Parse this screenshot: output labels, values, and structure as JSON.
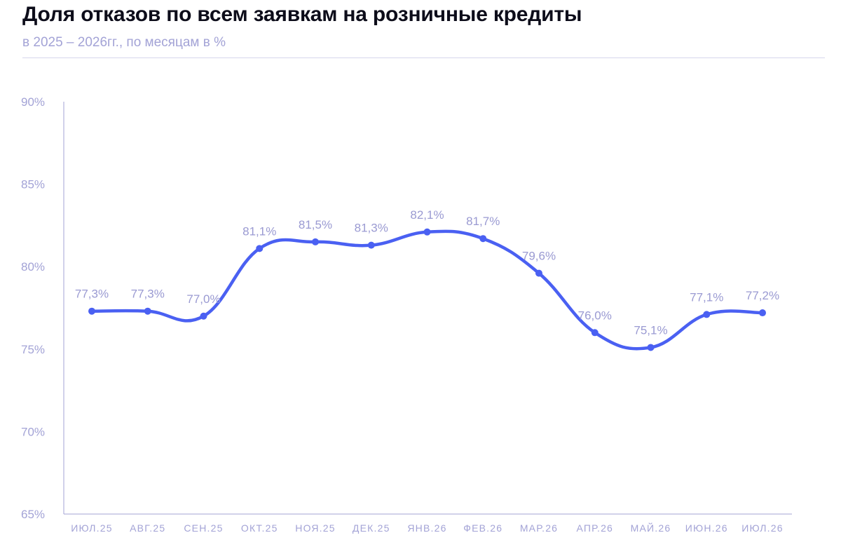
{
  "header": {
    "title": "Доля отказов по всем заявкам на розничные кредиты",
    "subtitle": "в 2025 – 2026гг., по месяцам в %"
  },
  "colors": {
    "line": "#4a60f2",
    "axis": "#a3a3d6",
    "label": "#9a9ad2",
    "title": "#0d0d1a"
  },
  "chart_data": {
    "type": "line",
    "title": "Доля отказов по всем заявкам на розничные кредиты",
    "subtitle": "в 2025 – 2026гг., по месяцам в %",
    "xlabel": "",
    "ylabel": "",
    "categories": [
      "ИЮЛ.25",
      "АВГ.25",
      "СЕН.25",
      "ОКТ.25",
      "НОЯ.25",
      "ДЕК.25",
      "ЯНВ.26",
      "ФЕВ.26",
      "МАР.26",
      "АПР.26",
      "МАЙ.26",
      "ИЮН.26",
      "ИЮЛ.26"
    ],
    "series": [
      {
        "values": [
          77.3,
          77.3,
          77.0,
          81.1,
          81.5,
          81.3,
          82.1,
          81.7,
          79.6,
          76.0,
          75.1,
          77.1,
          77.2
        ],
        "data_labels": [
          "77,3%",
          "77,3%",
          "77,0%",
          "81,1%",
          "81,5%",
          "81,3%",
          "82,1%",
          "81,7%",
          "79,6%",
          "76,0%",
          "75,1%",
          "77,1%",
          "77,2%"
        ]
      }
    ],
    "ylim": [
      65,
      90
    ],
    "yticks": [
      65,
      70,
      75,
      80,
      85,
      90
    ],
    "ytick_labels": [
      "65%",
      "70%",
      "75%",
      "80%",
      "85%",
      "90%"
    ],
    "grid": false,
    "legend": "none",
    "smooth": true
  }
}
